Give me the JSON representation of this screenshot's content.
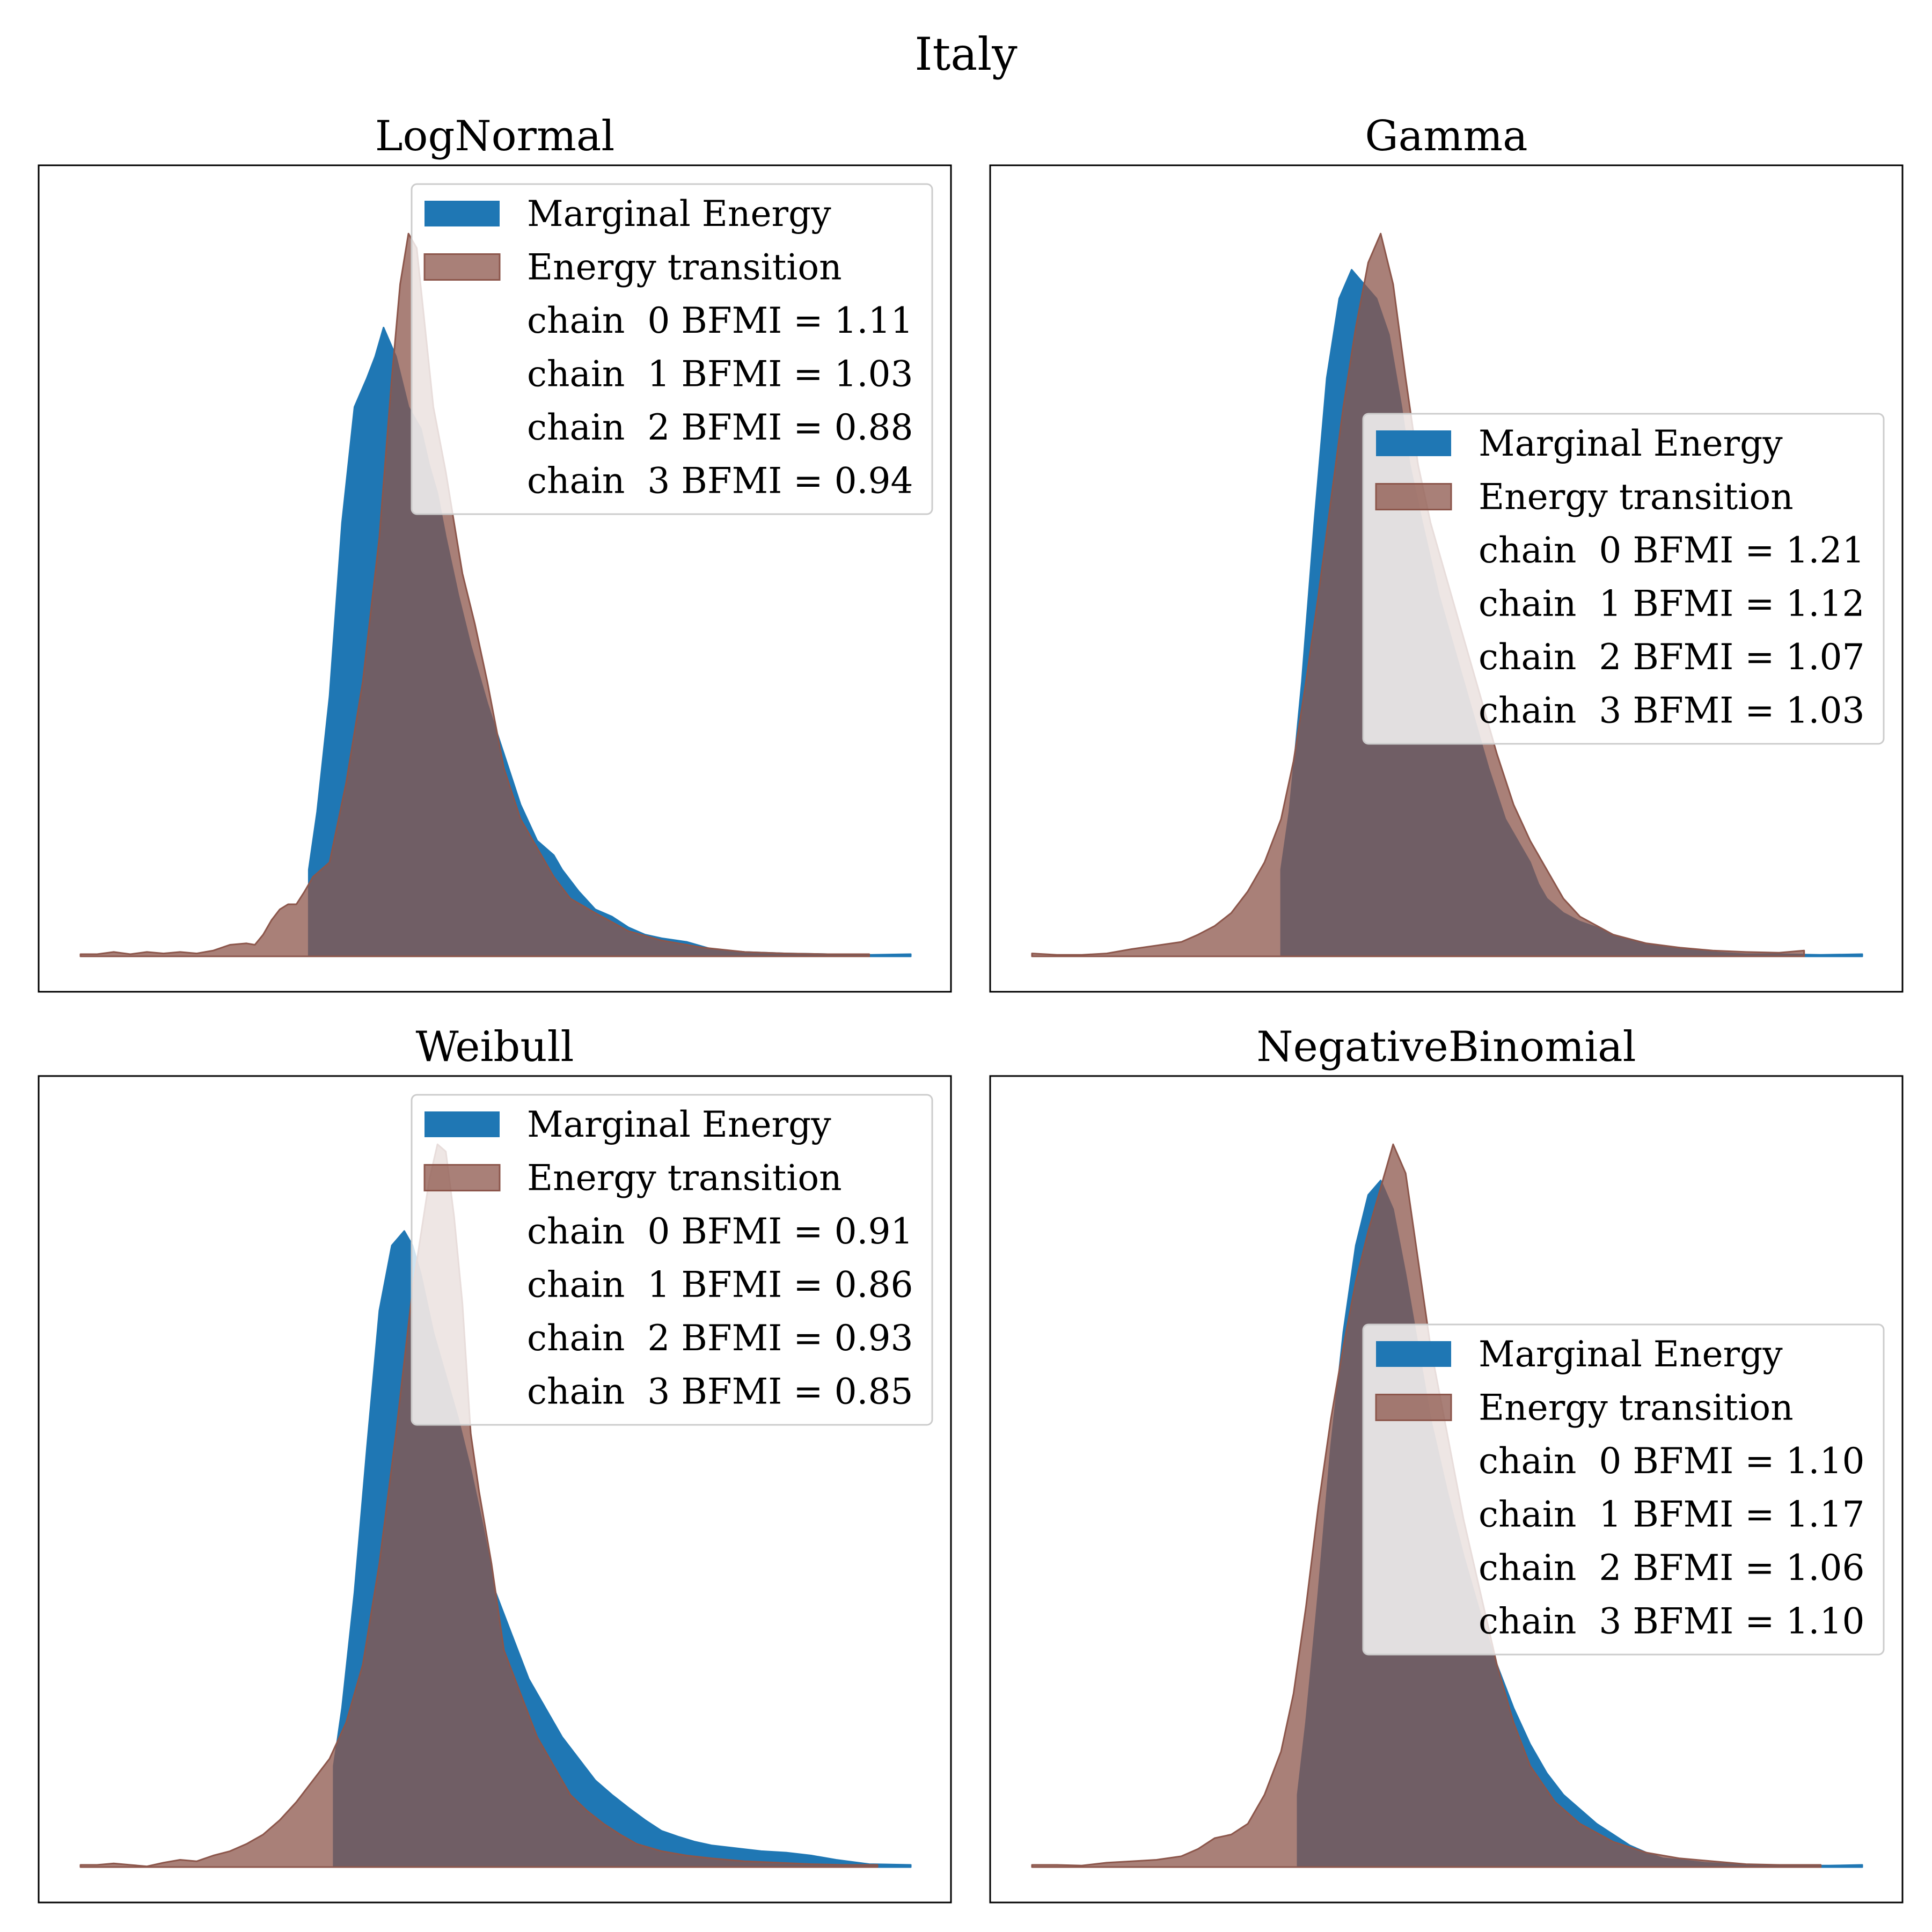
{
  "chart_data": {
    "type": "area",
    "title": "Italy",
    "colors": {
      "marginal": "#1f77b4",
      "transition": "#8c564b"
    },
    "panels": [
      {
        "title": "LogNormal",
        "legend_loc": "upper right",
        "legend": [
          "Marginal Energy",
          "Energy transition",
          "chain  0 BFMI = 1.11",
          "chain  1 BFMI = 1.03",
          "chain  2 BFMI = 0.88",
          "chain  3 BFMI = 0.94"
        ],
        "bfmi": [
          1.11,
          1.03,
          0.88,
          0.94
        ],
        "xlim": [
          0,
          100
        ],
        "ylim": [
          0,
          1.05
        ],
        "marginal_energy": {
          "x": [
            27.5,
            28.5,
            30,
            31.5,
            33,
            34.5,
            35.5,
            36.5,
            38,
            39.5,
            41,
            42,
            43,
            44,
            45.5,
            47,
            49,
            51,
            53,
            55,
            57,
            58,
            60,
            62,
            64,
            66,
            68,
            70,
            73,
            76,
            80,
            85,
            90,
            95,
            100
          ],
          "y": [
            0.12,
            0.2,
            0.36,
            0.6,
            0.76,
            0.8,
            0.83,
            0.87,
            0.83,
            0.76,
            0.73,
            0.68,
            0.64,
            0.58,
            0.5,
            0.43,
            0.35,
            0.28,
            0.21,
            0.16,
            0.14,
            0.12,
            0.09,
            0.065,
            0.055,
            0.04,
            0.03,
            0.025,
            0.02,
            0.01,
            0.006,
            0.004,
            0.003,
            0.002,
            0.003
          ]
        },
        "energy_transition": {
          "x": [
            0,
            2,
            4,
            6,
            8,
            10,
            12,
            14,
            16,
            18,
            20,
            21,
            22,
            23,
            24,
            25,
            26,
            27,
            28,
            30,
            32,
            34,
            36,
            37.5,
            38.5,
            39.5,
            40.5,
            41.5,
            42.5,
            44,
            45,
            46,
            47.5,
            49,
            51,
            53,
            55,
            57,
            59,
            62,
            66,
            70,
            75,
            80,
            85,
            90,
            95
          ],
          "y": [
            0.003,
            0.003,
            0.006,
            0.003,
            0.006,
            0.004,
            0.006,
            0.004,
            0.008,
            0.016,
            0.018,
            0.016,
            0.03,
            0.05,
            0.065,
            0.072,
            0.072,
            0.09,
            0.11,
            0.13,
            0.24,
            0.38,
            0.58,
            0.8,
            0.93,
            1.0,
            0.98,
            0.87,
            0.76,
            0.67,
            0.6,
            0.53,
            0.46,
            0.38,
            0.26,
            0.19,
            0.15,
            0.11,
            0.08,
            0.06,
            0.035,
            0.022,
            0.012,
            0.006,
            0.004,
            0.003,
            0.003
          ]
        }
      },
      {
        "title": "Gamma",
        "legend_loc": "center right",
        "legend": [
          "Marginal Energy",
          "Energy transition",
          "chain  0 BFMI = 1.21",
          "chain  1 BFMI = 1.12",
          "chain  2 BFMI = 1.07",
          "chain  3 BFMI = 1.03"
        ],
        "bfmi": [
          1.21,
          1.12,
          1.07,
          1.03
        ],
        "xlim": [
          0,
          100
        ],
        "ylim": [
          0,
          1.05
        ],
        "marginal_energy": {
          "x": [
            30,
            31,
            32.5,
            34,
            35.5,
            37,
            38.5,
            40,
            41.5,
            43,
            44.5,
            45.5,
            47,
            49,
            51,
            53,
            55,
            57,
            59,
            60,
            61,
            62,
            64,
            66,
            68,
            70,
            73,
            76,
            78,
            80,
            83,
            86,
            90,
            95,
            100
          ],
          "y": [
            0.12,
            0.2,
            0.38,
            0.6,
            0.8,
            0.91,
            0.95,
            0.93,
            0.91,
            0.86,
            0.76,
            0.68,
            0.6,
            0.5,
            0.42,
            0.34,
            0.26,
            0.19,
            0.15,
            0.13,
            0.1,
            0.08,
            0.06,
            0.048,
            0.04,
            0.03,
            0.02,
            0.013,
            0.012,
            0.008,
            0.005,
            0.003,
            0.003,
            0.002,
            0.003
          ]
        },
        "energy_transition": {
          "x": [
            0,
            3,
            6,
            9,
            12,
            15,
            18,
            20,
            22,
            24,
            26,
            28,
            30,
            31.5,
            33,
            34.5,
            36,
            37.5,
            39,
            40.5,
            42,
            43.5,
            45,
            46.5,
            48,
            50,
            52,
            54,
            56,
            58,
            60,
            62,
            64,
            66,
            70,
            74,
            78,
            82,
            86,
            90,
            93
          ],
          "y": [
            0.004,
            0.002,
            0.002,
            0.004,
            0.01,
            0.015,
            0.02,
            0.03,
            0.042,
            0.06,
            0.09,
            0.13,
            0.19,
            0.27,
            0.38,
            0.5,
            0.63,
            0.76,
            0.87,
            0.96,
            1.0,
            0.93,
            0.8,
            0.68,
            0.6,
            0.52,
            0.44,
            0.36,
            0.28,
            0.21,
            0.16,
            0.12,
            0.08,
            0.055,
            0.03,
            0.018,
            0.012,
            0.008,
            0.006,
            0.005,
            0.008
          ]
        }
      },
      {
        "title": "Weibull",
        "legend_loc": "upper right",
        "legend": [
          "Marginal Energy",
          "Energy transition",
          "chain  0 BFMI = 0.91",
          "chain  1 BFMI = 0.86",
          "chain  2 BFMI = 0.93",
          "chain  3 BFMI = 0.85"
        ],
        "bfmi": [
          0.91,
          0.86,
          0.93,
          0.85
        ],
        "xlim": [
          0,
          100
        ],
        "ylim": [
          0,
          1.05
        ],
        "marginal_energy": {
          "x": [
            30.5,
            31.5,
            33,
            34.5,
            36,
            37.5,
            39,
            40,
            41,
            42.5,
            44,
            45.5,
            47,
            48.5,
            50,
            52,
            54,
            56,
            58,
            60,
            62,
            64,
            66,
            68,
            70,
            72,
            74,
            76,
            79,
            82,
            85,
            88,
            91,
            95,
            100
          ],
          "y": [
            0.14,
            0.22,
            0.38,
            0.58,
            0.77,
            0.86,
            0.88,
            0.86,
            0.82,
            0.74,
            0.68,
            0.62,
            0.55,
            0.47,
            0.38,
            0.32,
            0.26,
            0.22,
            0.18,
            0.15,
            0.12,
            0.1,
            0.082,
            0.065,
            0.05,
            0.042,
            0.035,
            0.03,
            0.026,
            0.022,
            0.02,
            0.016,
            0.01,
            0.004,
            0.003
          ]
        },
        "energy_transition": {
          "x": [
            0,
            2,
            4,
            6,
            8,
            10,
            12,
            14,
            16,
            18,
            20,
            22,
            24,
            26,
            28,
            30,
            32,
            34,
            36,
            38,
            40,
            42,
            43,
            44,
            45,
            46,
            47,
            48,
            49.5,
            51,
            53,
            55,
            57,
            59,
            61,
            63,
            65,
            67,
            70,
            73,
            76,
            80,
            84,
            88,
            92,
            96
          ],
          "y": [
            0.003,
            0.003,
            0.005,
            0.003,
            0.001,
            0.006,
            0.01,
            0.008,
            0.016,
            0.022,
            0.032,
            0.045,
            0.065,
            0.09,
            0.12,
            0.15,
            0.2,
            0.28,
            0.42,
            0.6,
            0.8,
            0.95,
            1.0,
            0.99,
            0.9,
            0.78,
            0.6,
            0.52,
            0.42,
            0.3,
            0.24,
            0.18,
            0.14,
            0.1,
            0.078,
            0.06,
            0.045,
            0.032,
            0.022,
            0.016,
            0.012,
            0.008,
            0.006,
            0.004,
            0.003,
            0.003
          ]
        }
      },
      {
        "title": "NegativeBinomial",
        "legend_loc": "center right",
        "legend": [
          "Marginal Energy",
          "Energy transition",
          "chain  0 BFMI = 1.10",
          "chain  1 BFMI = 1.17",
          "chain  2 BFMI = 1.06",
          "chain  3 BFMI = 1.10"
        ],
        "bfmi": [
          1.1,
          1.17,
          1.06,
          1.1
        ],
        "xlim": [
          0,
          100
        ],
        "ylim": [
          0,
          1.05
        ],
        "marginal_energy": {
          "x": [
            32,
            33,
            34.5,
            36,
            37.5,
            39,
            40.5,
            42,
            43.5,
            45,
            46.5,
            48,
            50,
            52,
            54,
            56,
            58,
            60,
            62,
            64,
            66,
            68,
            70,
            72,
            74,
            76,
            78,
            81,
            84,
            88,
            92,
            96,
            100
          ],
          "y": [
            0.1,
            0.2,
            0.38,
            0.58,
            0.74,
            0.86,
            0.93,
            0.95,
            0.91,
            0.82,
            0.72,
            0.62,
            0.52,
            0.43,
            0.35,
            0.28,
            0.22,
            0.17,
            0.13,
            0.1,
            0.08,
            0.06,
            0.045,
            0.03,
            0.02,
            0.012,
            0.01,
            0.006,
            0.004,
            0.003,
            0.002,
            0.002,
            0.003
          ]
        },
        "energy_transition": {
          "x": [
            0,
            3,
            6,
            9,
            12,
            15,
            18,
            20,
            22,
            24,
            26,
            28,
            30,
            31.5,
            33,
            34.5,
            36,
            37.5,
            39,
            40.5,
            42,
            43.5,
            45,
            46.5,
            48,
            50,
            52,
            54,
            56,
            58,
            60,
            63,
            66,
            70,
            74,
            78,
            82,
            86,
            90,
            95
          ],
          "y": [
            0.003,
            0.003,
            0.002,
            0.006,
            0.008,
            0.01,
            0.015,
            0.025,
            0.04,
            0.045,
            0.06,
            0.1,
            0.16,
            0.24,
            0.36,
            0.5,
            0.62,
            0.72,
            0.81,
            0.88,
            0.94,
            1.0,
            0.96,
            0.84,
            0.72,
            0.6,
            0.48,
            0.38,
            0.28,
            0.2,
            0.14,
            0.09,
            0.06,
            0.035,
            0.02,
            0.012,
            0.008,
            0.004,
            0.003,
            0.003
          ]
        }
      }
    ]
  }
}
